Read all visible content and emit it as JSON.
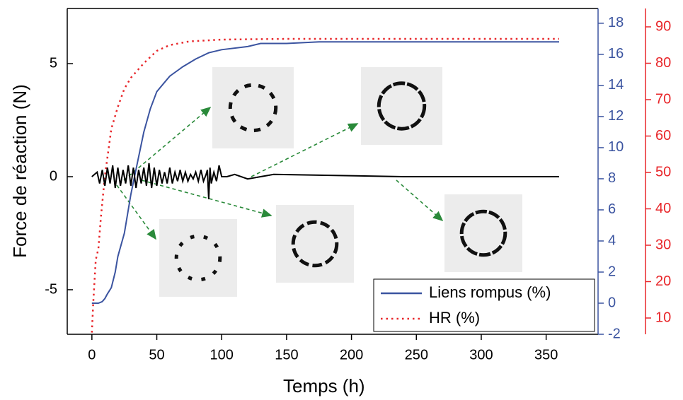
{
  "chart_data": {
    "type": "line",
    "x_label": "Temps (h)",
    "y_label": "Force de réaction (N)",
    "xlim": [
      -19,
      390
    ],
    "xticks": [
      0,
      50,
      100,
      150,
      200,
      250,
      300,
      350
    ],
    "ylim": [
      -6.97,
      7.44
    ],
    "yticks": [
      -5,
      0,
      5
    ],
    "y2lim": [
      -2,
      18.95
    ],
    "y2ticks": [
      -2,
      0,
      2,
      4,
      6,
      8,
      10,
      12,
      14,
      16,
      18
    ],
    "y2color": "#3b54a0",
    "y3lim": [
      5.53,
      95.05
    ],
    "y3ticks": [
      10,
      20,
      30,
      40,
      50,
      60,
      70,
      80,
      90
    ],
    "y3color": "#e8262a",
    "legend": "lower right",
    "series": [
      {
        "name": "Liens rompus (%)",
        "color": "#3b54a0",
        "axis": "y2",
        "style": "solid",
        "x": [
          0,
          5,
          8,
          10,
          12,
          15,
          18,
          20,
          25,
          30,
          35,
          40,
          45,
          50,
          55,
          60,
          70,
          80,
          90,
          100,
          120,
          130,
          150,
          175,
          200,
          360
        ],
        "values": [
          0,
          0,
          0.1,
          0.3,
          0.6,
          1,
          2,
          3,
          4.5,
          7,
          9,
          11,
          12.5,
          13.6,
          14.1,
          14.6,
          15.2,
          15.7,
          16.1,
          16.3,
          16.5,
          16.7,
          16.7,
          16.8,
          16.8,
          16.8
        ]
      },
      {
        "name": "HR (%)",
        "color": "#e8262a",
        "axis": "y3",
        "style": "dotted",
        "x": [
          0,
          1,
          2,
          3,
          5,
          7,
          10,
          15,
          20,
          25,
          30,
          40,
          50,
          60,
          75,
          100,
          150,
          360
        ],
        "values": [
          6,
          14,
          20,
          26,
          29,
          38,
          49,
          62,
          68,
          73,
          76,
          80,
          83.4,
          85,
          86,
          86.5,
          86.7,
          86.7
        ]
      },
      {
        "color": "#000000",
        "axis": "y",
        "style": "solid",
        "x": [
          0,
          4,
          6,
          8,
          10,
          12,
          14,
          16,
          18,
          20,
          22,
          24,
          26,
          28,
          30,
          32,
          34,
          36,
          38,
          40,
          42,
          44,
          46,
          48,
          50,
          52,
          54,
          56,
          58,
          60,
          62,
          64,
          66,
          68,
          70,
          72,
          74,
          76,
          78,
          80,
          82,
          84,
          86,
          88,
          89,
          90,
          91,
          92,
          94,
          96,
          98,
          100,
          104,
          110,
          120,
          130,
          140,
          240,
          360
        ],
        "values": [
          0,
          0.2,
          -0.3,
          0.3,
          -0.4,
          0.4,
          -0.3,
          0.5,
          -0.5,
          0.4,
          -0.4,
          0.3,
          -0.3,
          0.5,
          -0.4,
          0.4,
          -0.5,
          0.3,
          -0.3,
          0.4,
          -0.4,
          0.6,
          -0.5,
          0.4,
          -0.4,
          0.3,
          -0.3,
          0.2,
          -0.3,
          0.4,
          -0.3,
          0.2,
          -0.2,
          0.3,
          -0.2,
          0.2,
          -0.2,
          0.1,
          -0.1,
          0.2,
          -0.2,
          0.3,
          -0.2,
          0.1,
          0.3,
          -1.0,
          0.4,
          -0.3,
          0.2,
          -0.2,
          0.5,
          0,
          0,
          0.1,
          -0.1,
          0,
          0.1,
          0,
          0
        ]
      }
    ]
  }
}
